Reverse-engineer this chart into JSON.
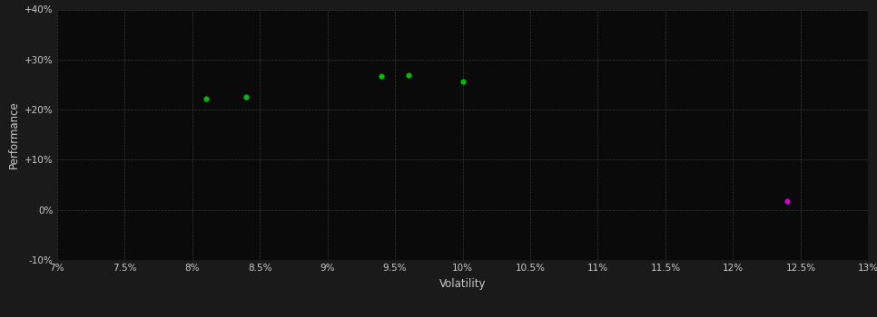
{
  "background_color": "#1a1a1a",
  "plot_bg_color": "#0a0a0a",
  "grid_color": "#444444",
  "text_color": "#cccccc",
  "xlabel": "Volatility",
  "ylabel": "Performance",
  "xlim": [
    0.07,
    0.13
  ],
  "ylim": [
    -0.1,
    0.4
  ],
  "xticks": [
    0.07,
    0.075,
    0.08,
    0.085,
    0.09,
    0.095,
    0.1,
    0.105,
    0.11,
    0.115,
    0.12,
    0.125,
    0.13
  ],
  "yticks": [
    -0.1,
    0.0,
    0.1,
    0.2,
    0.3,
    0.4
  ],
  "green_points": [
    [
      0.081,
      0.222
    ],
    [
      0.084,
      0.225
    ],
    [
      0.094,
      0.267
    ],
    [
      0.096,
      0.269
    ],
    [
      0.1,
      0.257
    ]
  ],
  "magenta_points": [
    [
      0.124,
      0.018
    ]
  ],
  "green_color": "#00bb00",
  "magenta_color": "#cc00cc",
  "marker_size": 20
}
